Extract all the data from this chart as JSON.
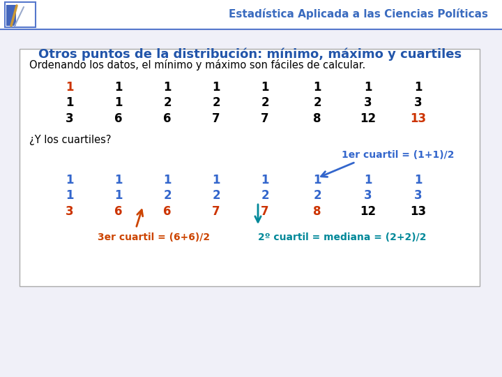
{
  "title": "Estadística Aplicada a las Ciencias Políticas",
  "subtitle": "Otros puntos de la distribución: mínimo, máximo y cuartiles",
  "box_text": "Ordenando los datos, el mínimo y máximo son fáciles de calcular.",
  "quartiles_text": "¿Y los cuartiles?",
  "q1_label": "1er cuartil = (1+1)/2",
  "q2_label": "2º cuartil = mediana = (2+2)/2",
  "q3_label": "3er cuartil = (6+6)/2",
  "data_rows": [
    [
      "1",
      "1",
      "1",
      "1",
      "1",
      "1",
      "1",
      "1"
    ],
    [
      "1",
      "1",
      "2",
      "2",
      "2",
      "2",
      "3",
      "3"
    ],
    [
      "3",
      "6",
      "6",
      "7",
      "7",
      "8",
      "12",
      "13"
    ]
  ],
  "data_rows2": [
    [
      "1",
      "1",
      "1",
      "1",
      "1",
      "1",
      "1",
      "1"
    ],
    [
      "1",
      "1",
      "2",
      "2",
      "2",
      "2",
      "3",
      "3"
    ],
    [
      "3",
      "6",
      "6",
      "7",
      "7",
      "8",
      "12",
      "13"
    ]
  ],
  "col_colors_row1": [
    "#cc3300",
    "#000000",
    "#000000",
    "#000000",
    "#000000",
    "#000000",
    "#000000",
    "#000000"
  ],
  "col_colors_row2": [
    "#000000",
    "#000000",
    "#000000",
    "#000000",
    "#000000",
    "#000000",
    "#000000",
    "#000000"
  ],
  "col_colors_row3": [
    "#000000",
    "#000000",
    "#000000",
    "#000000",
    "#000000",
    "#000000",
    "#000000",
    "#cc3300"
  ],
  "col_colors2_row1": [
    "#3366cc",
    "#3366cc",
    "#3366cc",
    "#3366cc",
    "#3366cc",
    "#3366cc",
    "#3366cc",
    "#3366cc"
  ],
  "col_colors2_row2": [
    "#3366cc",
    "#3366cc",
    "#3366cc",
    "#3366cc",
    "#3366cc",
    "#3366cc",
    "#3366cc",
    "#3366cc"
  ],
  "col_colors2_row3": [
    "#cc3300",
    "#cc3300",
    "#cc3300",
    "#cc3300",
    "#cc3300",
    "#cc3300",
    "#000000",
    "#000000"
  ],
  "title_color": "#3a6bbf",
  "subtitle_color": "#2255aa",
  "box_border_color": "#aaaaaa",
  "q1_label_color": "#3366cc",
  "q2_label_color": "#008899",
  "q3_label_color": "#cc4400",
  "bg_color": "#f0f0f8",
  "arrow_color_q1": "#3366cc",
  "arrow_color_q2": "#008899",
  "arrow_color_q3": "#cc4400",
  "font_size_title": 11,
  "font_size_subtitle": 13,
  "font_size_box": 10.5,
  "font_size_data": 12,
  "font_size_label": 10
}
